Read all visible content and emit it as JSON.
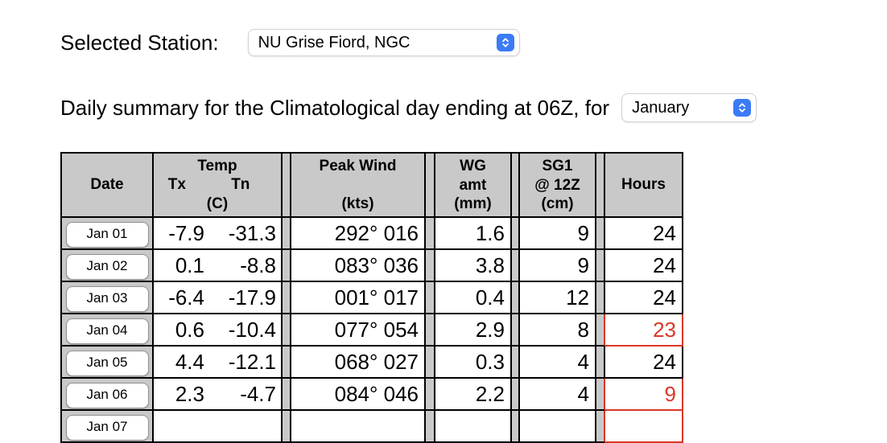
{
  "station": {
    "label": "Selected Station:",
    "value": "NU Grise Fiord, NGC"
  },
  "summary": {
    "label": "Daily summary for the Climatological day ending at 06Z, for",
    "value": "January"
  },
  "table": {
    "headers": {
      "date": "Date",
      "temp_title": "Temp",
      "temp_tx": "Tx",
      "temp_tn": "Tn",
      "temp_unit": "(C)",
      "peak_title": "Peak Wind",
      "peak_unit": "(kts)",
      "wg_line1": "WG",
      "wg_line2": "amt",
      "wg_unit": "(mm)",
      "sg_line1": "SG1",
      "sg_line2": "@ 12Z",
      "sg_unit": "(cm)",
      "hours": "Hours"
    },
    "rows": [
      {
        "date": "Jan 01",
        "tx": "-7.9",
        "tn": "-31.3",
        "peak_wind": "292° 016",
        "wg_amt": "1.6",
        "sg1_12z": "9",
        "hours": "24",
        "hours_alert": false
      },
      {
        "date": "Jan 02",
        "tx": "0.1",
        "tn": "-8.8",
        "peak_wind": "083° 036",
        "wg_amt": "3.8",
        "sg1_12z": "9",
        "hours": "24",
        "hours_alert": false
      },
      {
        "date": "Jan 03",
        "tx": "-6.4",
        "tn": "-17.9",
        "peak_wind": "001° 017",
        "wg_amt": "0.4",
        "sg1_12z": "12",
        "hours": "24",
        "hours_alert": false
      },
      {
        "date": "Jan 04",
        "tx": "0.6",
        "tn": "-10.4",
        "peak_wind": "077° 054",
        "wg_amt": "2.9",
        "sg1_12z": "8",
        "hours": "23",
        "hours_alert": true
      },
      {
        "date": "Jan 05",
        "tx": "4.4",
        "tn": "-12.1",
        "peak_wind": "068° 027",
        "wg_amt": "0.3",
        "sg1_12z": "4",
        "hours": "24",
        "hours_alert": false
      },
      {
        "date": "Jan 06",
        "tx": "2.3",
        "tn": "-4.7",
        "peak_wind": "084° 046",
        "wg_amt": "2.2",
        "sg1_12z": "4",
        "hours": "9",
        "hours_alert": true
      },
      {
        "date": "Jan 07",
        "tx": "",
        "tn": "",
        "peak_wind": "",
        "wg_amt": "",
        "sg1_12z": "",
        "hours": "",
        "hours_alert": true
      }
    ]
  },
  "colors": {
    "header_bg": "#c9c9c9",
    "alert_red": "#da3827",
    "select_accent": "#3b7bf6"
  }
}
